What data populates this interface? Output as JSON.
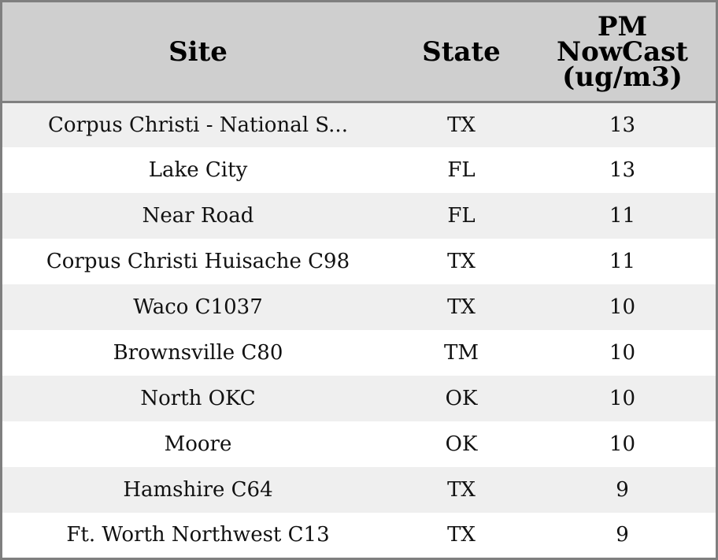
{
  "table": {
    "headers": {
      "site": "Site",
      "state": "State",
      "pm_line1": "PM",
      "pm_line2": "NowCast",
      "pm_line3": "(ug/m3)"
    },
    "rows": [
      {
        "site": "Corpus Christi - National S...",
        "state": "TX",
        "pm": "13"
      },
      {
        "site": "Lake City",
        "state": "FL",
        "pm": "13"
      },
      {
        "site": "Near Road",
        "state": "FL",
        "pm": "11"
      },
      {
        "site": "Corpus Christi Huisache C98",
        "state": "TX",
        "pm": "11"
      },
      {
        "site": "Waco C1037",
        "state": "TX",
        "pm": "10"
      },
      {
        "site": "Brownsville C80",
        "state": "TM",
        "pm": "10"
      },
      {
        "site": "North OKC",
        "state": "OK",
        "pm": "10"
      },
      {
        "site": "Moore",
        "state": "OK",
        "pm": "10"
      },
      {
        "site": "Hamshire C64",
        "state": "TX",
        "pm": "9"
      },
      {
        "site": "Ft. Worth Northwest C13",
        "state": "TX",
        "pm": "9"
      }
    ]
  },
  "colors": {
    "header_bg": "#cfcfcf",
    "row_alt_bg": "#efefef",
    "row_bg": "#ffffff",
    "border": "#7f7f7f"
  }
}
